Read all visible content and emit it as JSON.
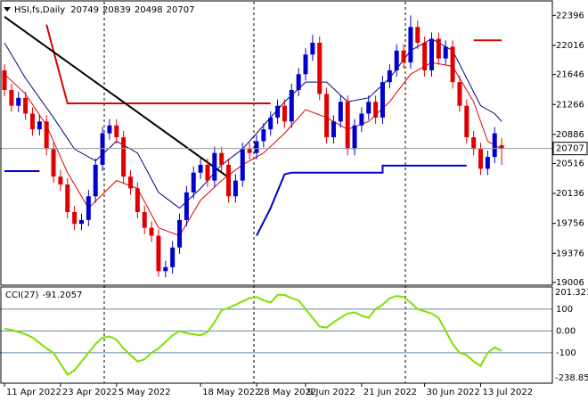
{
  "chart_data": [
    {
      "type": "candlestick",
      "title": "HSI,fs,Daily",
      "xlim": [
        -0.64,
        78.24
      ],
      "xticks": [
        {
          "value": 0,
          "label": "11 Apr 2022"
        },
        {
          "value": 8,
          "label": "23 Apr 2022"
        },
        {
          "value": 16,
          "label": "5 May 2022"
        },
        {
          "value": 28,
          "label": "18 May 2022"
        },
        {
          "value": 36,
          "label": "28 May 2022"
        },
        {
          "value": 43,
          "label": "9 Jun 2022"
        },
        {
          "value": 51,
          "label": "21 Jun 2022"
        },
        {
          "value": 60,
          "label": "30 Jun 2022"
        },
        {
          "value": 68,
          "label": "13 Jul 2022"
        }
      ],
      "ylim": [
        18972,
        22570
      ],
      "yticks": [
        22396,
        22016,
        21646,
        21266,
        20886,
        20516,
        20136,
        19756,
        19376,
        19006
      ],
      "up_color": "#0000cc",
      "down_color": "#e00000",
      "open": [
        21700,
        21450,
        21250,
        21350,
        21150,
        20950,
        21050,
        20700,
        20350,
        20250,
        19900,
        19750,
        19800,
        20100,
        20500,
        20900,
        21000,
        20850,
        20350,
        20200,
        19900,
        19700,
        19600,
        19150,
        19200,
        19450,
        19800,
        20150,
        20400,
        20500,
        20300,
        20650,
        20500,
        20100,
        20300,
        20700,
        20650,
        20800,
        20950,
        21100,
        21250,
        21050,
        21450,
        21650,
        21900,
        22050,
        21400,
        20850,
        21050,
        21300,
        20700,
        21000,
        21150,
        21300,
        21100,
        21550,
        21700,
        21950,
        21800,
        22250,
        22050,
        21700,
        22100,
        21850,
        22000,
        21550,
        21250,
        20850,
        20700,
        20450,
        20600,
        20749
      ],
      "high": [
        21780,
        21530,
        21430,
        21430,
        21230,
        21130,
        21130,
        20780,
        20430,
        20330,
        19980,
        19880,
        20180,
        20580,
        20980,
        21080,
        21080,
        20930,
        20430,
        20280,
        19980,
        19780,
        19680,
        19280,
        19530,
        19880,
        20230,
        20480,
        20580,
        20580,
        20730,
        20730,
        20580,
        20380,
        20780,
        20780,
        20880,
        21030,
        21180,
        21330,
        21330,
        21530,
        21730,
        21980,
        22150,
        22130,
        21480,
        21130,
        21380,
        21380,
        21080,
        21230,
        21380,
        21380,
        21630,
        21780,
        22030,
        22030,
        22396,
        22330,
        22130,
        22180,
        22180,
        22080,
        22080,
        21630,
        21330,
        20930,
        20780,
        20680,
        20980,
        20839
      ],
      "low": [
        21370,
        21170,
        21170,
        21070,
        20870,
        20870,
        20620,
        20270,
        20170,
        19820,
        19670,
        19670,
        19720,
        20020,
        20420,
        20820,
        20770,
        20270,
        20120,
        19820,
        19620,
        19520,
        19080,
        19070,
        19120,
        19370,
        19720,
        20070,
        20320,
        20220,
        20220,
        20420,
        20020,
        20020,
        20220,
        20570,
        20570,
        20720,
        20870,
        21020,
        20970,
        20970,
        21370,
        21570,
        21820,
        21320,
        20770,
        20770,
        20970,
        20620,
        20620,
        20920,
        21070,
        21020,
        21020,
        21470,
        21620,
        21720,
        21720,
        21970,
        21620,
        21620,
        21770,
        21770,
        21470,
        21170,
        20770,
        20620,
        20370,
        20370,
        20520,
        20498
      ],
      "close": [
        21450,
        21250,
        21350,
        21150,
        20950,
        21050,
        20700,
        20350,
        20250,
        19900,
        19750,
        19800,
        20100,
        20500,
        20900,
        21000,
        20850,
        20350,
        20200,
        19900,
        19700,
        19600,
        19150,
        19200,
        19450,
        19800,
        20150,
        20400,
        20500,
        20300,
        20650,
        20500,
        20100,
        20300,
        20700,
        20650,
        20800,
        20950,
        21100,
        21250,
        21050,
        21450,
        21650,
        21900,
        22050,
        21400,
        20850,
        21050,
        21300,
        20700,
        21000,
        21150,
        21300,
        21100,
        21550,
        21700,
        21950,
        21800,
        22250,
        22050,
        21700,
        22100,
        21850,
        22000,
        21550,
        21250,
        20850,
        20700,
        20450,
        20600,
        20900,
        20707
      ],
      "overlays": [
        {
          "color": "#e00000",
          "width": 1,
          "x": [
            0,
            3,
            6,
            9,
            12,
            16,
            19,
            22,
            25,
            28,
            31,
            34,
            37,
            40,
            43,
            46,
            49,
            52,
            55,
            58,
            61,
            64,
            67,
            69,
            71
          ],
          "values": [
            21650,
            21400,
            21000,
            20400,
            19950,
            20300,
            20200,
            19700,
            19600,
            20050,
            20300,
            20500,
            20650,
            20900,
            21200,
            21100,
            20950,
            21050,
            21300,
            21650,
            21800,
            21750,
            21300,
            20800,
            20700
          ]
        },
        {
          "color": "#00007f",
          "width": 1,
          "x": [
            0,
            3,
            7,
            10,
            13,
            16,
            19,
            22,
            25,
            28,
            31,
            34,
            37,
            40,
            43,
            46,
            49,
            52,
            55,
            58,
            61,
            64,
            66,
            68,
            70,
            71
          ],
          "values": [
            22050,
            21600,
            21100,
            20700,
            20550,
            20800,
            20650,
            20150,
            19950,
            20200,
            20500,
            20700,
            21000,
            21300,
            21550,
            21550,
            21300,
            21350,
            21600,
            21950,
            22100,
            21950,
            21600,
            21250,
            21150,
            21050
          ]
        },
        {
          "color": "#dd0000",
          "width": 2,
          "x": [
            6,
            9,
            38,
            null,
            67,
            71
          ],
          "values": [
            22280,
            21280,
            21280,
            null,
            22080,
            22080
          ]
        },
        {
          "color": "#0000cc",
          "width": 2,
          "x": [
            0,
            5,
            null,
            36,
            38,
            40,
            41,
            54,
            54,
            66
          ],
          "values": [
            20420,
            20420,
            null,
            19600,
            19950,
            20380,
            20400,
            20400,
            20490,
            20490
          ]
        },
        {
          "color": "#000000",
          "width": 2,
          "x": [
            0,
            32
          ],
          "values": [
            22380,
            20340
          ]
        }
      ]
    },
    {
      "type": "line",
      "title": "CCI(27)",
      "color": "#7fe000",
      "ylim": [
        -238.856,
        201.3217
      ],
      "yticks": [
        100,
        {
          "value": 0,
          "label": "0.00"
        },
        -100
      ],
      "values": [
        10,
        5,
        -5,
        -15,
        -30,
        -55,
        -80,
        -100,
        -150,
        -200,
        -180,
        -140,
        -100,
        -60,
        -30,
        -25,
        -40,
        -80,
        -110,
        -140,
        -130,
        -100,
        -80,
        -50,
        -20,
        0,
        -10,
        -15,
        -20,
        -5,
        40,
        95,
        105,
        120,
        135,
        150,
        155,
        140,
        130,
        165,
        165,
        150,
        140,
        100,
        60,
        20,
        15,
        40,
        60,
        80,
        85,
        70,
        60,
        100,
        120,
        150,
        160,
        155,
        130,
        100,
        90,
        80,
        60,
        0,
        -60,
        -100,
        -110,
        -140,
        -160,
        -100,
        -75,
        -91.2057
      ]
    }
  ]
}
